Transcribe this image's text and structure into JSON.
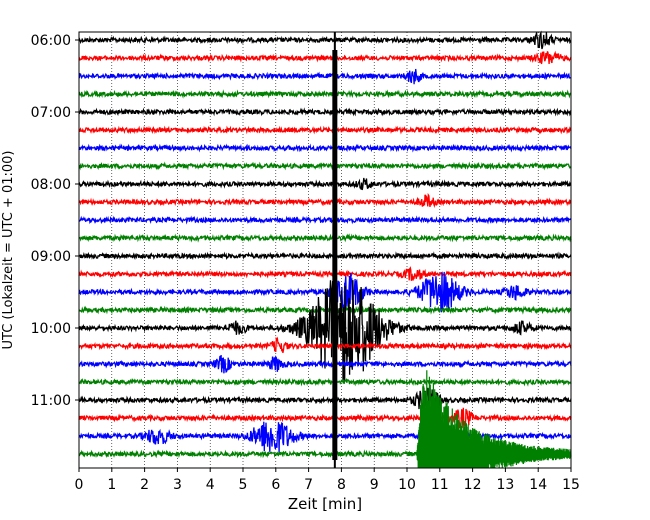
{
  "chart_data": {
    "type": "line",
    "title": "",
    "xlabel": "Zeit  [min]",
    "ylabel": "UTC (Lokalzeit = UTC + 01:00)",
    "xlim": [
      0,
      15
    ],
    "x_ticks": [
      "0",
      "1",
      "2",
      "3",
      "4",
      "5",
      "6",
      "7",
      "8",
      "9",
      "10",
      "11",
      "12",
      "13",
      "14",
      "15"
    ],
    "y_ticks": [
      "06:00",
      "07:00",
      "08:00",
      "09:00",
      "10:00",
      "11:00"
    ],
    "grid": true,
    "legend": "none",
    "trace_interval_min": 15,
    "trace_colors": [
      "#000000",
      "#ff0000",
      "#0000ff",
      "#008000"
    ],
    "traces": [
      {
        "start": "06:00",
        "color": "#000000"
      },
      {
        "start": "06:15",
        "color": "#ff0000"
      },
      {
        "start": "06:30",
        "color": "#0000ff"
      },
      {
        "start": "06:45",
        "color": "#008000"
      },
      {
        "start": "07:00",
        "color": "#000000"
      },
      {
        "start": "07:15",
        "color": "#ff0000"
      },
      {
        "start": "07:30",
        "color": "#0000ff"
      },
      {
        "start": "07:45",
        "color": "#008000"
      },
      {
        "start": "08:00",
        "color": "#000000"
      },
      {
        "start": "08:15",
        "color": "#ff0000"
      },
      {
        "start": "08:30",
        "color": "#0000ff"
      },
      {
        "start": "08:45",
        "color": "#008000"
      },
      {
        "start": "09:00",
        "color": "#000000"
      },
      {
        "start": "09:15",
        "color": "#ff0000"
      },
      {
        "start": "09:30",
        "color": "#0000ff"
      },
      {
        "start": "09:45",
        "color": "#008000"
      },
      {
        "start": "10:00",
        "color": "#000000"
      },
      {
        "start": "10:15",
        "color": "#ff0000"
      },
      {
        "start": "10:30",
        "color": "#0000ff"
      },
      {
        "start": "10:45",
        "color": "#008000"
      },
      {
        "start": "11:00",
        "color": "#000000"
      },
      {
        "start": "11:15",
        "color": "#ff0000"
      },
      {
        "start": "11:30",
        "color": "#0000ff"
      },
      {
        "start": "11:45",
        "color": "#008000"
      }
    ],
    "events": [
      {
        "trace": 0,
        "t": 14.1,
        "amp": 0.35,
        "dur": 0.4
      },
      {
        "trace": 1,
        "t": 14.3,
        "amp": 0.25,
        "dur": 0.5
      },
      {
        "trace": 2,
        "t": 10.2,
        "amp": 0.3,
        "dur": 0.3
      },
      {
        "trace": 8,
        "t": 8.7,
        "amp": 0.2,
        "dur": 0.3
      },
      {
        "trace": 9,
        "t": 10.6,
        "amp": 0.25,
        "dur": 0.3
      },
      {
        "trace": 13,
        "t": 10.2,
        "amp": 0.25,
        "dur": 0.4
      },
      {
        "trace": 14,
        "t": 8.2,
        "amp": 0.8,
        "dur": 0.6
      },
      {
        "trace": 14,
        "t": 11.0,
        "amp": 0.9,
        "dur": 0.8
      },
      {
        "trace": 14,
        "t": 13.3,
        "amp": 0.3,
        "dur": 0.4
      },
      {
        "trace": 16,
        "t": 4.8,
        "amp": 0.25,
        "dur": 0.4
      },
      {
        "trace": 16,
        "t": 8.1,
        "amp": 2.6,
        "dur": 1.4
      },
      {
        "trace": 16,
        "t": 13.5,
        "amp": 0.25,
        "dur": 0.4
      },
      {
        "trace": 17,
        "t": 6.1,
        "amp": 0.3,
        "dur": 0.3
      },
      {
        "trace": 18,
        "t": 4.4,
        "amp": 0.35,
        "dur": 0.3
      },
      {
        "trace": 18,
        "t": 6.0,
        "amp": 0.3,
        "dur": 0.3
      },
      {
        "trace": 22,
        "t": 5.9,
        "amp": 0.8,
        "dur": 0.8
      },
      {
        "trace": 22,
        "t": 2.4,
        "amp": 0.35,
        "dur": 0.5
      },
      {
        "trace": 21,
        "t": 11.7,
        "amp": 0.4,
        "dur": 0.4
      },
      {
        "trace": 20,
        "t": 10.6,
        "amp": 0.5,
        "dur": 0.5
      }
    ],
    "spike": {
      "t": 7.8,
      "from_trace": 0,
      "to_trace": 23,
      "color": "#000000"
    },
    "burst": {
      "trace": 23,
      "t_start": 10.3,
      "t_end": 15.0,
      "peak_t": 10.5,
      "color": "#008000",
      "amp": 5.0
    }
  }
}
